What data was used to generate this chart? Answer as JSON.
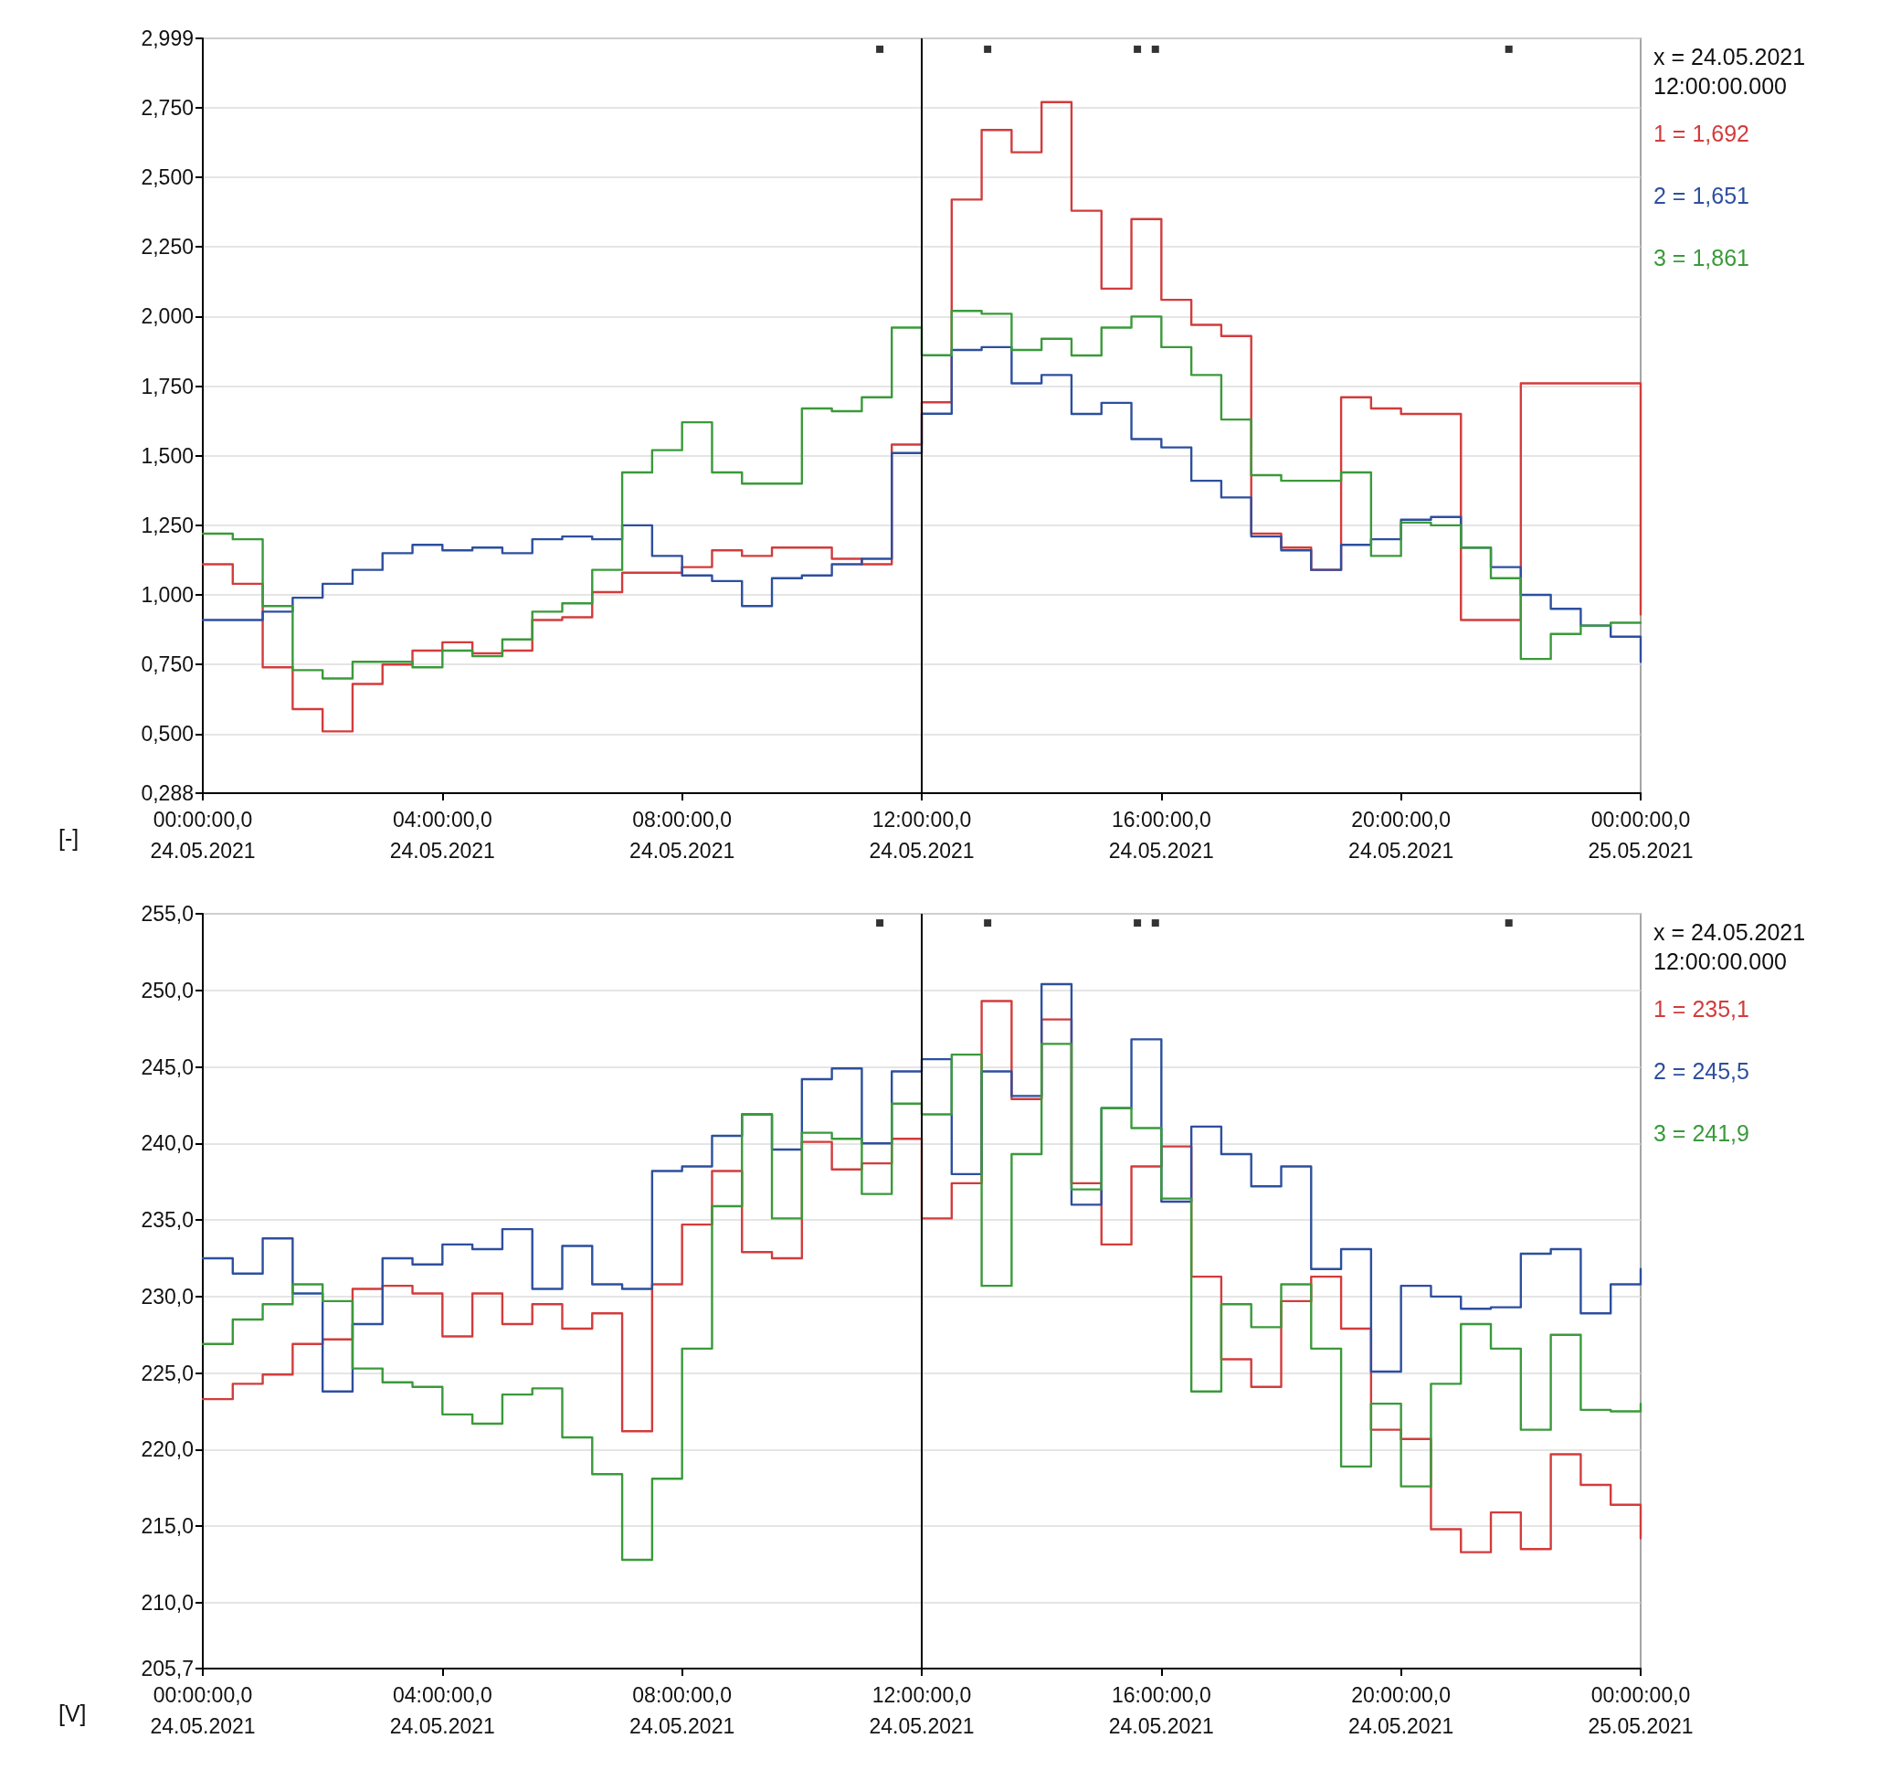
{
  "chart_data": [
    {
      "type": "step",
      "ylabel": "[-]",
      "x": [
        "2021-05-24T00:00",
        "2021-05-24T00:30",
        "2021-05-24T01:00",
        "2021-05-24T01:30",
        "2021-05-24T02:00",
        "2021-05-24T02:30",
        "2021-05-24T03:00",
        "2021-05-24T03:30",
        "2021-05-24T04:00",
        "2021-05-24T04:30",
        "2021-05-24T05:00",
        "2021-05-24T05:30",
        "2021-05-24T06:00",
        "2021-05-24T06:30",
        "2021-05-24T07:00",
        "2021-05-24T07:30",
        "2021-05-24T08:00",
        "2021-05-24T08:30",
        "2021-05-24T09:00",
        "2021-05-24T09:30",
        "2021-05-24T10:00",
        "2021-05-24T10:30",
        "2021-05-24T11:00",
        "2021-05-24T11:30",
        "2021-05-24T12:00",
        "2021-05-24T12:30",
        "2021-05-24T13:00",
        "2021-05-24T13:30",
        "2021-05-24T14:00",
        "2021-05-24T14:30",
        "2021-05-24T15:00",
        "2021-05-24T15:30",
        "2021-05-24T16:00",
        "2021-05-24T16:30",
        "2021-05-24T17:00",
        "2021-05-24T17:30",
        "2021-05-24T18:00",
        "2021-05-24T18:30",
        "2021-05-24T19:00",
        "2021-05-24T19:30",
        "2021-05-24T20:00",
        "2021-05-24T20:30",
        "2021-05-24T21:00",
        "2021-05-24T21:30",
        "2021-05-24T22:00",
        "2021-05-24T22:30",
        "2021-05-24T23:00",
        "2021-05-24T23:30",
        "2021-05-25T00:00"
      ],
      "series": [
        {
          "color": "#d23c3c",
          "values": [
            1.11,
            1.04,
            0.74,
            0.59,
            0.51,
            0.68,
            0.75,
            0.8,
            0.83,
            0.79,
            0.8,
            0.91,
            0.92,
            1.01,
            1.08,
            1.08,
            1.1,
            1.16,
            1.14,
            1.17,
            1.17,
            1.13,
            1.11,
            1.54,
            1.692,
            2.42,
            2.67,
            2.59,
            2.77,
            2.38,
            2.1,
            2.35,
            2.06,
            1.97,
            1.93,
            1.22,
            1.17,
            1.09,
            1.71,
            1.67,
            1.65,
            1.65,
            0.91,
            0.91,
            1.76,
            1.76,
            1.76,
            1.76,
            0.93
          ]
        },
        {
          "color": "#2d4f9e",
          "values": [
            0.91,
            0.91,
            0.94,
            0.99,
            1.04,
            1.09,
            1.15,
            1.18,
            1.16,
            1.17,
            1.15,
            1.2,
            1.21,
            1.2,
            1.25,
            1.14,
            1.07,
            1.05,
            0.96,
            1.06,
            1.07,
            1.11,
            1.13,
            1.51,
            1.651,
            1.88,
            1.89,
            1.76,
            1.79,
            1.65,
            1.69,
            1.56,
            1.53,
            1.41,
            1.35,
            1.21,
            1.16,
            1.09,
            1.18,
            1.2,
            1.27,
            1.28,
            1.17,
            1.1,
            1.0,
            0.95,
            0.89,
            0.85,
            0.76
          ]
        },
        {
          "color": "#3a9a3a",
          "values": [
            1.22,
            1.2,
            0.96,
            0.73,
            0.7,
            0.76,
            0.76,
            0.74,
            0.8,
            0.78,
            0.84,
            0.94,
            0.97,
            1.09,
            1.44,
            1.52,
            1.62,
            1.44,
            1.4,
            1.4,
            1.67,
            1.66,
            1.71,
            1.96,
            1.861,
            2.02,
            2.01,
            1.88,
            1.92,
            1.86,
            1.96,
            2.0,
            1.89,
            1.79,
            1.63,
            1.43,
            1.41,
            1.41,
            1.44,
            1.14,
            1.26,
            1.25,
            1.17,
            1.06,
            0.77,
            0.86,
            0.89,
            0.9,
            0.9
          ]
        },
        {
          "type": "scatter",
          "marker": "square",
          "color": "#000000",
          "x": [
            "2021-05-24T11:18",
            "2021-05-24T13:06",
            "2021-05-24T15:36",
            "2021-05-24T15:54",
            "2021-05-24T21:48"
          ],
          "values": [
            2.96,
            2.96,
            2.96,
            2.96,
            2.96
          ]
        }
      ],
      "xlim": [
        "2021-05-24T00:00",
        "2021-05-25T00:00"
      ],
      "xticks": [
        {
          "value": "2021-05-24T00:00",
          "label": "00:00:00,0\n24.05.2021"
        },
        {
          "value": "2021-05-24T04:00",
          "label": "04:00:00,0\n24.05.2021"
        },
        {
          "value": "2021-05-24T08:00",
          "label": "08:00:00,0\n24.05.2021"
        },
        {
          "value": "2021-05-24T12:00",
          "label": "12:00:00,0\n24.05.2021"
        },
        {
          "value": "2021-05-24T16:00",
          "label": "16:00:00,0\n24.05.2021"
        },
        {
          "value": "2021-05-24T20:00",
          "label": "20:00:00,0\n24.05.2021"
        },
        {
          "value": "2021-05-25T00:00",
          "label": "00:00:00,0\n25.05.2021"
        }
      ],
      "ylim": [
        0.288,
        2.999
      ],
      "yticks": [
        {
          "value": 0.288,
          "label": "0,288"
        },
        {
          "value": 0.5,
          "label": "0,500"
        },
        {
          "value": 0.75,
          "label": "0,750"
        },
        {
          "value": 1,
          "label": "1,000"
        },
        {
          "value": 1.25,
          "label": "1,250"
        },
        {
          "value": 1.5,
          "label": "1,500"
        },
        {
          "value": 1.75,
          "label": "1,750"
        },
        {
          "value": 2,
          "label": "2,000"
        },
        {
          "value": 2.25,
          "label": "2,250"
        },
        {
          "value": 2.5,
          "label": "2,500"
        },
        {
          "value": 2.75,
          "label": "2,750"
        },
        {
          "value": 2.999,
          "label": "2,999"
        }
      ],
      "ref_lines": [
        {
          "axis": "x",
          "value": "2021-05-24T12:00",
          "color": "#000000"
        }
      ],
      "annotations": [
        "x = 24.05.2021\n12:00:00.000",
        "1 = 1,692",
        "2 = 1,651",
        "3 = 1,861"
      ],
      "grid": "y",
      "marker": "none",
      "line_style": "solid"
    },
    {
      "type": "step",
      "ylabel": "[V]",
      "x": [
        "2021-05-24T00:00",
        "2021-05-24T00:30",
        "2021-05-24T01:00",
        "2021-05-24T01:30",
        "2021-05-24T02:00",
        "2021-05-24T02:30",
        "2021-05-24T03:00",
        "2021-05-24T03:30",
        "2021-05-24T04:00",
        "2021-05-24T04:30",
        "2021-05-24T05:00",
        "2021-05-24T05:30",
        "2021-05-24T06:00",
        "2021-05-24T06:30",
        "2021-05-24T07:00",
        "2021-05-24T07:30",
        "2021-05-24T08:00",
        "2021-05-24T08:30",
        "2021-05-24T09:00",
        "2021-05-24T09:30",
        "2021-05-24T10:00",
        "2021-05-24T10:30",
        "2021-05-24T11:00",
        "2021-05-24T11:30",
        "2021-05-24T12:00",
        "2021-05-24T12:30",
        "2021-05-24T13:00",
        "2021-05-24T13:30",
        "2021-05-24T14:00",
        "2021-05-24T14:30",
        "2021-05-24T15:00",
        "2021-05-24T15:30",
        "2021-05-24T16:00",
        "2021-05-24T16:30",
        "2021-05-24T17:00",
        "2021-05-24T17:30",
        "2021-05-24T18:00",
        "2021-05-24T18:30",
        "2021-05-24T19:00",
        "2021-05-24T19:30",
        "2021-05-24T20:00",
        "2021-05-24T20:30",
        "2021-05-24T21:00",
        "2021-05-24T21:30",
        "2021-05-24T22:00",
        "2021-05-24T22:30",
        "2021-05-24T23:00",
        "2021-05-24T23:30",
        "2021-05-25T00:00"
      ],
      "series": [
        {
          "color": "#d23c3c",
          "values": [
            223.3,
            224.3,
            224.9,
            226.9,
            227.2,
            230.5,
            230.7,
            230.2,
            227.4,
            230.2,
            228.2,
            229.5,
            227.9,
            228.9,
            221.2,
            230.8,
            234.7,
            238.2,
            232.9,
            232.5,
            240.1,
            238.3,
            238.7,
            240.3,
            235.1,
            237.4,
            249.3,
            242.9,
            248.1,
            237.4,
            233.4,
            238.5,
            239.8,
            231.3,
            225.9,
            224.1,
            229.7,
            231.3,
            227.9,
            221.3,
            220.7,
            214.8,
            213.3,
            215.9,
            213.5,
            219.7,
            217.7,
            216.4,
            214.2
          ]
        },
        {
          "color": "#2d4f9e",
          "values": [
            232.5,
            231.5,
            233.8,
            230.2,
            223.8,
            228.2,
            232.5,
            232.1,
            233.4,
            233.1,
            234.4,
            230.5,
            233.3,
            230.8,
            230.5,
            238.2,
            238.5,
            240.5,
            241.9,
            239.6,
            244.2,
            244.9,
            240.0,
            244.7,
            245.5,
            238.0,
            244.7,
            243.1,
            250.4,
            236.0,
            242.3,
            246.8,
            236.2,
            241.1,
            239.3,
            237.2,
            238.5,
            231.8,
            233.1,
            225.1,
            230.7,
            230.0,
            229.2,
            229.3,
            232.8,
            233.1,
            228.9,
            230.8,
            231.8
          ]
        },
        {
          "color": "#3a9a3a",
          "values": [
            226.9,
            228.5,
            229.5,
            230.8,
            229.7,
            225.3,
            224.4,
            224.1,
            222.3,
            221.7,
            223.6,
            224.0,
            220.8,
            218.4,
            212.8,
            218.1,
            226.6,
            235.9,
            241.9,
            235.1,
            240.7,
            240.3,
            236.7,
            242.6,
            241.9,
            245.8,
            230.7,
            239.3,
            246.5,
            237.0,
            242.3,
            241.0,
            236.4,
            223.8,
            229.5,
            228.0,
            230.8,
            226.6,
            218.9,
            223.0,
            217.6,
            224.3,
            228.2,
            226.6,
            221.3,
            227.5,
            222.6,
            222.5,
            223.0
          ]
        },
        {
          "type": "scatter",
          "marker": "square",
          "color": "#000000",
          "x": [
            "2021-05-24T11:18",
            "2021-05-24T13:06",
            "2021-05-24T15:36",
            "2021-05-24T15:54",
            "2021-05-24T21:48"
          ],
          "values": [
            254.4,
            254.4,
            254.4,
            254.4,
            254.4
          ]
        }
      ],
      "xlim": [
        "2021-05-24T00:00",
        "2021-05-25T00:00"
      ],
      "xticks": [
        {
          "value": "2021-05-24T00:00",
          "label": "00:00:00,0\n24.05.2021"
        },
        {
          "value": "2021-05-24T04:00",
          "label": "04:00:00,0\n24.05.2021"
        },
        {
          "value": "2021-05-24T08:00",
          "label": "08:00:00,0\n24.05.2021"
        },
        {
          "value": "2021-05-24T12:00",
          "label": "12:00:00,0\n24.05.2021"
        },
        {
          "value": "2021-05-24T16:00",
          "label": "16:00:00,0\n24.05.2021"
        },
        {
          "value": "2021-05-24T20:00",
          "label": "20:00:00,0\n24.05.2021"
        },
        {
          "value": "2021-05-25T00:00",
          "label": "00:00:00,0\n25.05.2021"
        }
      ],
      "ylim": [
        205.7,
        255
      ],
      "yticks": [
        {
          "value": 205.7,
          "label": "205,7"
        },
        {
          "value": 210,
          "label": "210,0"
        },
        {
          "value": 215,
          "label": "215,0"
        },
        {
          "value": 220,
          "label": "220,0"
        },
        {
          "value": 225,
          "label": "225,0"
        },
        {
          "value": 230,
          "label": "230,0"
        },
        {
          "value": 235,
          "label": "235,0"
        },
        {
          "value": 240,
          "label": "240,0"
        },
        {
          "value": 245,
          "label": "245,0"
        },
        {
          "value": 250,
          "label": "250,0"
        },
        {
          "value": 255,
          "label": "255,0"
        }
      ],
      "ref_lines": [
        {
          "axis": "x",
          "value": "2021-05-24T12:00",
          "color": "#000000"
        }
      ],
      "annotations": [
        "x = 24.05.2021\n12:00:00.000",
        "1 = 235,1",
        "2 = 245,5",
        "3 = 241,9"
      ],
      "grid": "y",
      "marker": "none",
      "line_style": "solid"
    }
  ]
}
